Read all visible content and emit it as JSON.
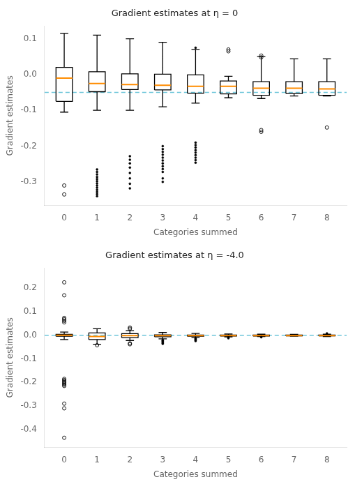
{
  "chart_data": [
    {
      "type": "box",
      "title": "Gradient estimates at η = 0",
      "x_label": "Categories summed",
      "y_label": "Gradient estimates",
      "categories": [
        0,
        1,
        2,
        3,
        4,
        5,
        6,
        7,
        8
      ],
      "color": "#000000",
      "grid": false,
      "median_line": {
        "color": "#ff8c00"
      },
      "reference_line": {
        "y": -0.05,
        "color": "#6cc5d9",
        "line_style": "dashed"
      },
      "ylim": [
        -0.365,
        0.135
      ],
      "yticks": [
        -0.3,
        -0.2,
        -0.1,
        {
          "value": 0.0,
          "label": "0.0"
        },
        0.1
      ],
      "boxes": [
        {
          "med": -0.01,
          "q1": -0.075,
          "q3": 0.02,
          "whislo": -0.105,
          "whishi": 0.115,
          "fliers": [
            -0.31,
            -0.335
          ],
          "marker": "open"
        },
        {
          "med": -0.025,
          "q1": -0.048,
          "q3": 0.008,
          "whislo": -0.1,
          "whishi": 0.11,
          "fliers": [
            -0.265,
            -0.272,
            -0.279,
            -0.286,
            -0.292,
            -0.298,
            -0.304,
            -0.31,
            -0.316,
            -0.322,
            -0.328,
            -0.334,
            -0.34
          ],
          "marker": "filled"
        },
        {
          "med": -0.028,
          "q1": -0.042,
          "q3": 0.002,
          "whislo": -0.1,
          "whishi": 0.1,
          "fliers": [
            -0.228,
            -0.238,
            -0.248,
            -0.26,
            -0.275,
            -0.29,
            -0.305,
            -0.318
          ],
          "marker": "filled"
        },
        {
          "med": -0.03,
          "q1": -0.043,
          "q3": 0.001,
          "whislo": -0.09,
          "whishi": 0.09,
          "fliers": [
            -0.2,
            -0.208,
            -0.216,
            -0.224,
            -0.232,
            -0.24,
            -0.248,
            -0.256,
            -0.264,
            -0.272,
            -0.29,
            -0.3
          ],
          "marker": "filled"
        },
        {
          "med": -0.033,
          "q1": -0.052,
          "q3": -0.001,
          "whislo": -0.08,
          "whishi": 0.07,
          "fliers": [
            -0.19,
            -0.197,
            -0.204,
            -0.211,
            -0.218,
            -0.225,
            -0.232,
            -0.239,
            -0.246,
            0.075
          ],
          "marker": "filled"
        },
        {
          "med": -0.033,
          "q1": -0.054,
          "q3": -0.018,
          "whislo": -0.065,
          "whishi": -0.005,
          "fliers": [
            0.065,
            0.07
          ],
          "marker": "open"
        },
        {
          "med": -0.038,
          "q1": -0.058,
          "q3": -0.02,
          "whislo": -0.067,
          "whishi": 0.05,
          "fliers": [
            -0.155,
            -0.16,
            0.048,
            0.053
          ],
          "marker": "open"
        },
        {
          "med": -0.038,
          "q1": -0.053,
          "q3": -0.02,
          "whislo": -0.06,
          "whishi": 0.044,
          "fliers": [],
          "marker": "open"
        },
        {
          "med": -0.04,
          "q1": -0.058,
          "q3": -0.02,
          "whislo": -0.06,
          "whishi": 0.044,
          "fliers": [
            -0.148
          ],
          "marker": "open"
        }
      ]
    },
    {
      "type": "box",
      "title": "Gradient estimates at η = -4.0",
      "x_label": "Categories summed",
      "y_label": "Gradient estimates",
      "categories": [
        0,
        1,
        2,
        3,
        4,
        5,
        6,
        7,
        8
      ],
      "color": "#000000",
      "grid": false,
      "median_line": {
        "color": "#ff8c00"
      },
      "reference_line": {
        "y": 0.0,
        "color": "#6cc5d9",
        "line_style": "dashed"
      },
      "ylim": [
        -0.475,
        0.285
      ],
      "yticks": [
        -0.4,
        -0.3,
        -0.2,
        -0.1,
        {
          "value": 0.0,
          "label": "0.0"
        },
        0.1,
        0.2
      ],
      "boxes": [
        {
          "med": 0.0,
          "q1": -0.004,
          "q3": 0.004,
          "whislo": -0.018,
          "whishi": 0.014,
          "fliers": [
            -0.185,
            -0.19,
            -0.195,
            -0.2,
            -0.205,
            -0.21,
            -0.215,
            -0.29,
            -0.31,
            -0.435,
            0.055,
            0.062,
            0.068,
            0.074,
            0.17,
            0.225
          ],
          "marker": "open"
        },
        {
          "med": -0.005,
          "q1": -0.018,
          "q3": 0.01,
          "whislo": -0.038,
          "whishi": 0.028,
          "fliers": [
            -0.042
          ],
          "marker": "open"
        },
        {
          "med": -0.001,
          "q1": -0.01,
          "q3": 0.007,
          "whislo": -0.022,
          "whishi": 0.02,
          "fliers": [
            -0.034,
            -0.038,
            0.028,
            0.033
          ],
          "marker": "open"
        },
        {
          "med": -0.001,
          "q1": -0.006,
          "q3": 0.002,
          "whislo": -0.015,
          "whishi": 0.012,
          "fliers": [
            -0.02,
            -0.023,
            -0.026,
            -0.03,
            -0.033,
            -0.036
          ],
          "marker": "filled"
        },
        {
          "med": -0.001,
          "q1": -0.004,
          "q3": 0.001,
          "whislo": -0.009,
          "whishi": 0.008,
          "fliers": [
            -0.012,
            -0.015,
            -0.018,
            -0.021,
            -0.024
          ],
          "marker": "filled"
        },
        {
          "med": -0.001,
          "q1": -0.003,
          "q3": 0.001,
          "whislo": -0.007,
          "whishi": 0.006,
          "fliers": [
            -0.009,
            -0.012
          ],
          "marker": "filled"
        },
        {
          "med": -0.001,
          "q1": -0.003,
          "q3": 0.001,
          "whislo": -0.005,
          "whishi": 0.005,
          "fliers": [
            -0.008
          ],
          "marker": "filled"
        },
        {
          "med": -0.001,
          "q1": -0.002,
          "q3": 0.001,
          "whislo": -0.004,
          "whishi": 0.004,
          "fliers": [],
          "marker": "filled"
        },
        {
          "med": -0.001,
          "q1": -0.002,
          "q3": 0.001,
          "whislo": -0.005,
          "whishi": 0.005,
          "fliers": [
            0.008
          ],
          "marker": "filled"
        }
      ]
    }
  ]
}
